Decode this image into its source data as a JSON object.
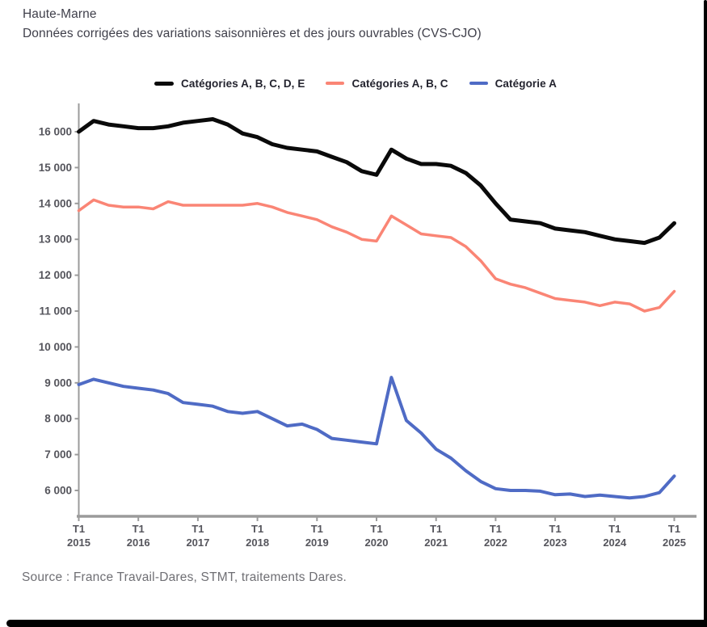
{
  "header": {
    "region": "Haute-Marne",
    "subtitle": "Données corrigées des variations saisonnières et des jours ouvrables (CVS-CJO)"
  },
  "source_text": "Source : France Travail-Dares, STMT, traitements Dares.",
  "colors": {
    "series_abcde": "#0a0a0a",
    "series_abc": "#fa8575",
    "series_a": "#4f6bc5",
    "axis": "#9b9b9b",
    "axis_label": "#55555c"
  },
  "chart_data": {
    "type": "line",
    "frequency": "quarterly",
    "x_start": "T1 2015",
    "x_end": "T1 2025",
    "grid": "off",
    "legend_position": "top-center",
    "ylim": [
      5280,
      16855
    ],
    "ytick_values": [
      16000,
      15000,
      14000,
      13000,
      12000,
      11000,
      10000,
      9000,
      8000,
      7000,
      6000
    ],
    "ytick_labels": [
      "16 000",
      "15 000",
      "14 000",
      "13 000",
      "12 000",
      "11 000",
      "10 000",
      "9 000",
      "8 000",
      "7 000",
      "6 000"
    ],
    "x_ticks": [
      {
        "line1": "T1",
        "line2": "2015"
      },
      {
        "line1": "T1",
        "line2": "2016"
      },
      {
        "line1": "T1",
        "line2": "2017"
      },
      {
        "line1": "T1",
        "line2": "2018"
      },
      {
        "line1": "T1",
        "line2": "2019"
      },
      {
        "line1": "T1",
        "line2": "2020"
      },
      {
        "line1": "T1",
        "line2": "2021"
      },
      {
        "line1": "T1",
        "line2": "2022"
      },
      {
        "line1": "T1",
        "line2": "2023"
      },
      {
        "line1": "T1",
        "line2": "2024"
      },
      {
        "line1": "T1",
        "line2": "2025"
      }
    ],
    "series": [
      {
        "name": "Catégories A, B, C, D, E",
        "color": "#0a0a0a",
        "stroke_width": 5,
        "values": [
          16000,
          16300,
          16200,
          16150,
          16100,
          16100,
          16150,
          16250,
          16300,
          16350,
          16200,
          15950,
          15850,
          15650,
          15550,
          15500,
          15450,
          15300,
          15150,
          14900,
          14800,
          15500,
          15250,
          15100,
          15100,
          15050,
          14850,
          14500,
          14000,
          13550,
          13500,
          13450,
          13300,
          13250,
          13200,
          13100,
          13000,
          12950,
          12900,
          13050,
          13450
        ]
      },
      {
        "name": "Catégories A, B, C",
        "color": "#fa8575",
        "stroke_width": 3.5,
        "values": [
          13800,
          14100,
          13950,
          13900,
          13900,
          13850,
          14050,
          13950,
          13950,
          13950,
          13950,
          13950,
          14000,
          13900,
          13750,
          13650,
          13550,
          13350,
          13200,
          13000,
          12950,
          13650,
          13400,
          13150,
          13100,
          13050,
          12800,
          12400,
          11900,
          11750,
          11650,
          11500,
          11350,
          11300,
          11250,
          11150,
          11250,
          11200,
          11000,
          11100,
          11550
        ]
      },
      {
        "name": "Catégorie A",
        "color": "#4f6bc5",
        "stroke_width": 4,
        "values": [
          8950,
          9100,
          9000,
          8900,
          8850,
          8800,
          8700,
          8450,
          8400,
          8350,
          8200,
          8150,
          8200,
          8000,
          7800,
          7850,
          7700,
          7450,
          7400,
          7350,
          7300,
          9150,
          7950,
          7600,
          7150,
          6900,
          6550,
          6250,
          6050,
          6000,
          6000,
          5980,
          5880,
          5900,
          5830,
          5870,
          5830,
          5790,
          5830,
          5940,
          6400
        ]
      }
    ]
  }
}
